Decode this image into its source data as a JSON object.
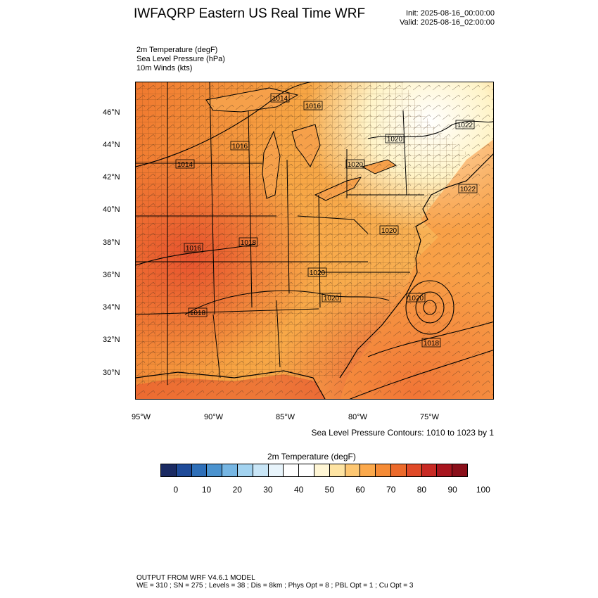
{
  "header": {
    "title": "IWFAQRP Eastern US Real Time WRF",
    "init": "Init: 2025-08-16_00:00:00",
    "valid": "Valid: 2025-08-16_02:00:00"
  },
  "fields": {
    "line1": "2m Temperature   (degF)",
    "line2": "Sea Level Pressure   (hPa)",
    "line3": "10m Winds   (kts)"
  },
  "map": {
    "lon_labels": [
      "95°W",
      "90°W",
      "85°W",
      "80°W",
      "75°W"
    ],
    "lat_labels": [
      "46°N",
      "44°N",
      "42°N",
      "40°N",
      "38°N",
      "36°N",
      "34°N",
      "32°N",
      "30°N"
    ],
    "isobar_labels": [
      "1014",
      "1016",
      "1016",
      "1014",
      "1020",
      "1020",
      "1022",
      "1022",
      "1016",
      "1018",
      "1020",
      "1020",
      "1020",
      "1020",
      "1018",
      "1018"
    ],
    "colors": {
      "land_warm": "#f59a3a",
      "land_hot": "#e8532e",
      "land_mild": "#fbb55a",
      "cool_ne": "#fff4c8",
      "ocean_warm": "#f79a3f",
      "ocean_hot": "#e8582e"
    }
  },
  "contour_note": "Sea Level Pressure Contours: 1010 to 1023 by 1",
  "colorbar": {
    "title": "2m Temperature  (degF)",
    "labels": [
      "0",
      "10",
      "20",
      "30",
      "40",
      "50",
      "60",
      "70",
      "80",
      "90",
      "100"
    ],
    "colors": [
      "#1b2b63",
      "#1f4b99",
      "#2e6fb8",
      "#4b93cf",
      "#76b6e3",
      "#a3d3f0",
      "#c9e6f7",
      "#e8f4fb",
      "#ffffff",
      "#ffffff",
      "#fff6d5",
      "#fee4a3",
      "#fdc772",
      "#fba94c",
      "#f58b36",
      "#ec6a2b",
      "#e04a28",
      "#c82a24",
      "#a8151e",
      "#8a0f1a"
    ]
  },
  "footer": {
    "line1": "OUTPUT FROM WRF V4.6.1 MODEL",
    "line2": "WE = 310 ; SN = 275 ; Levels = 38 ; Dis = 8km ; Phys Opt = 8 ; PBL Opt = 1 ; Cu Opt = 3"
  }
}
